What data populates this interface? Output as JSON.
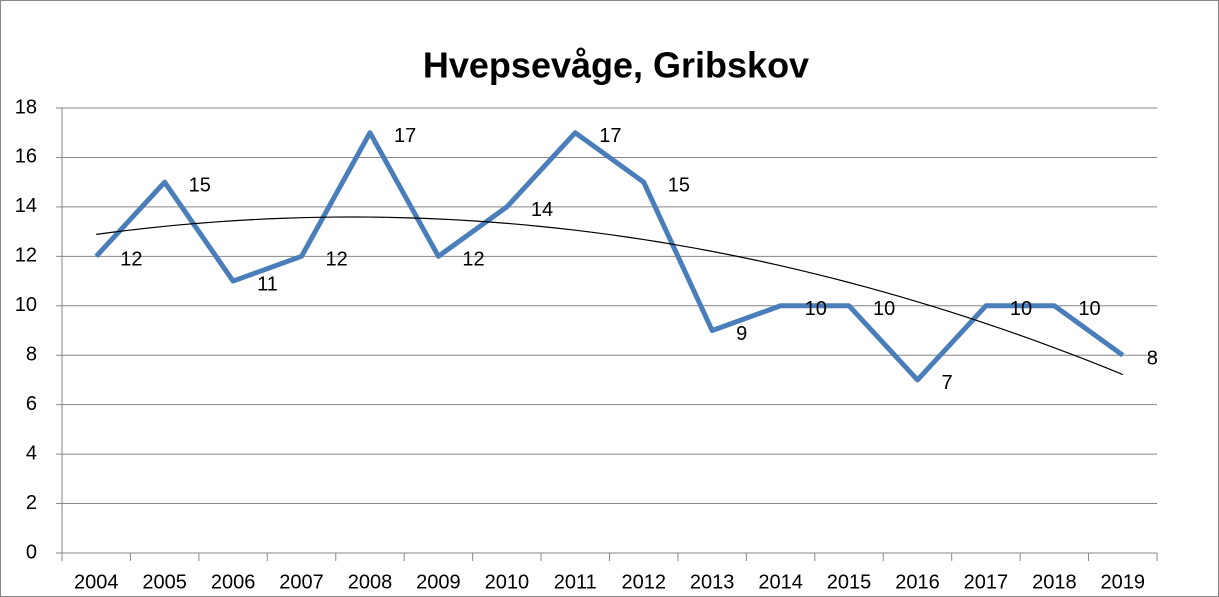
{
  "chart_data": {
    "type": "line",
    "title": "Hvepsevåge, Gribskov",
    "categories": [
      "2004",
      "2005",
      "2006",
      "2007",
      "2008",
      "2009",
      "2010",
      "2011",
      "2012",
      "2013",
      "2014",
      "2015",
      "2016",
      "2017",
      "2018",
      "2019"
    ],
    "values": [
      12,
      15,
      11,
      12,
      17,
      12,
      14,
      17,
      15,
      9,
      10,
      10,
      7,
      10,
      10,
      8
    ],
    "color": "#4a7ebb",
    "ylim": [
      0,
      18
    ],
    "yticks": [
      0,
      2,
      4,
      6,
      8,
      10,
      12,
      14,
      16,
      18
    ],
    "grid": true,
    "trendline": "quadratic"
  }
}
